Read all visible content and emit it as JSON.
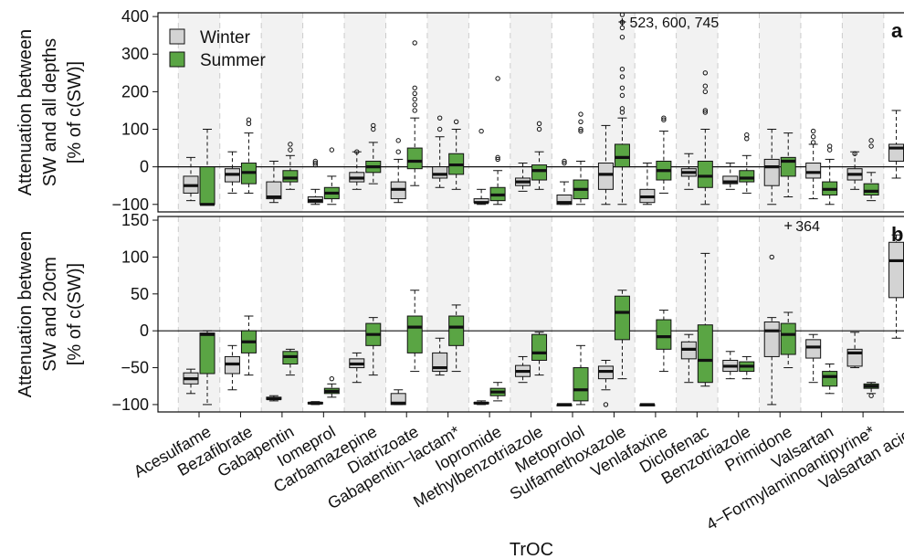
{
  "chart_data": {
    "type": "box",
    "xlabel": "TrOC",
    "categories": [
      "Acesulfame",
      "Bezafibrate",
      "Gabapentin",
      "Iomeprol",
      "Carbamazepine",
      "Diatrizoate",
      "Gabapentin−lactam*",
      "Iopromide",
      "Methylbenzotriazole",
      "Metoprolol",
      "Sulfamethoxazole",
      "Venlafaxine",
      "Diclofenac",
      "Benzotriazole",
      "Primidone",
      "Valsartan",
      "4−Formylaminoantipyrine*",
      "Valsartan acid*"
    ],
    "legend": {
      "placement": "top-left",
      "items": [
        {
          "name": "Winter",
          "color": "#d3d3d3"
        },
        {
          "name": "Summer",
          "color": "#5aa544"
        }
      ]
    },
    "panels": [
      {
        "label": "a",
        "ylabel_lines": [
          "Attenuation between",
          "SW and all depths",
          "[% of c(SW)]"
        ],
        "ylim": [
          -120,
          410
        ],
        "yticks": [
          -100,
          0,
          100,
          200,
          300,
          400
        ],
        "annotation": "523, 600, 745",
        "annotation_category": 10,
        "winter": [
          [
            -90,
            -70,
            -50,
            -25,
            25
          ],
          [
            -70,
            -40,
            -20,
            -5,
            40
          ],
          [
            -95,
            -85,
            -80,
            -40,
            15
          ],
          [
            -100,
            -95,
            -90,
            -80,
            -60
          ],
          [
            -60,
            -40,
            -30,
            -15,
            40
          ],
          [
            -95,
            -85,
            -60,
            -40,
            20
          ],
          [
            -55,
            -30,
            -20,
            0,
            80
          ],
          [
            -100,
            -95,
            -95,
            -85,
            -60
          ],
          [
            -65,
            -50,
            -40,
            -30,
            10
          ],
          [
            -100,
            -100,
            -95,
            -75,
            -40
          ],
          [
            -100,
            -60,
            -20,
            10,
            110
          ],
          [
            -100,
            -95,
            -80,
            -60,
            10
          ],
          [
            -60,
            -25,
            -15,
            -5,
            35
          ],
          [
            -60,
            -45,
            -40,
            -25,
            10
          ],
          [
            -100,
            -50,
            0,
            20,
            100
          ],
          [
            -85,
            -30,
            -15,
            10,
            60
          ],
          [
            -60,
            -35,
            -20,
            -5,
            40
          ],
          [
            -30,
            15,
            50,
            60,
            150
          ]
        ],
        "summer": [
          [
            -100,
            -100,
            -100,
            0,
            100
          ],
          [
            -70,
            -45,
            -15,
            10,
            90
          ],
          [
            -60,
            -40,
            -30,
            -10,
            30
          ],
          [
            -100,
            -85,
            -70,
            -55,
            -25
          ],
          [
            -45,
            -15,
            0,
            15,
            65
          ],
          [
            -50,
            -5,
            15,
            50,
            130
          ],
          [
            -60,
            -20,
            5,
            35,
            100
          ],
          [
            -100,
            -90,
            -75,
            -55,
            -10
          ],
          [
            -60,
            -35,
            -10,
            5,
            40
          ],
          [
            -100,
            -85,
            -60,
            -35,
            15
          ],
          [
            -100,
            0,
            25,
            60,
            130
          ],
          [
            -70,
            -35,
            -10,
            15,
            95
          ],
          [
            -100,
            -55,
            -25,
            15,
            100
          ],
          [
            -70,
            -40,
            -30,
            -10,
            30
          ],
          [
            -80,
            -25,
            15,
            25,
            90
          ],
          [
            -100,
            -75,
            -60,
            -40,
            20
          ],
          [
            -90,
            -75,
            -65,
            -45,
            -15
          ],
          [
            -60,
            0,
            20,
            35,
            80
          ]
        ],
        "outliers_winter": [
          [],
          [],
          [],
          [
            15,
            10,
            5
          ],
          [
            40
          ],
          [
            40,
            70
          ],
          [
            130,
            100
          ],
          [
            95
          ],
          [],
          [
            15,
            10
          ],
          [],
          [],
          [],
          [],
          [],
          [
            95,
            80,
            65
          ],
          [
            35
          ],
          []
        ],
        "outliers_summer": [
          [],
          [
            125,
            115
          ],
          [
            60,
            45
          ],
          [
            45
          ],
          [
            110,
            100
          ],
          [
            330,
            210,
            195,
            180,
            165,
            150
          ],
          [
            120
          ],
          [
            235,
            25,
            20
          ],
          [
            115,
            100
          ],
          [
            140,
            120,
            100,
            95
          ],
          [
            405,
            385,
            370,
            345,
            260,
            240,
            210,
            190,
            155,
            145
          ],
          [
            130,
            125
          ],
          [
            250,
            215,
            200,
            150,
            145
          ],
          [
            85,
            75
          ],
          [],
          [
            55,
            45
          ],
          [
            70,
            55
          ],
          [
            120,
            115,
            105,
            95,
            -65
          ]
        ]
      },
      {
        "label": "b",
        "ylabel_lines": [
          "Attenuation between",
          "SW and 20cm",
          "[% of c(SW)]"
        ],
        "ylim": [
          -110,
          155
        ],
        "yticks": [
          -100,
          -50,
          0,
          50,
          100,
          150
        ],
        "annotation": "364",
        "annotation_category": 14,
        "winter": [
          [
            -85,
            -72,
            -65,
            -57,
            -52
          ],
          [
            -80,
            -58,
            -45,
            -35,
            -20
          ],
          [
            -95,
            -93,
            -92,
            -90,
            -88
          ],
          [
            -100,
            -99,
            -98,
            -97,
            -96
          ],
          [
            -70,
            -50,
            -45,
            -38,
            -30
          ],
          [
            -100,
            -100,
            -98,
            -85,
            -80
          ],
          [
            -60,
            -55,
            -50,
            -30,
            -10
          ],
          [
            -100,
            -99,
            -98,
            -97,
            -95
          ],
          [
            -70,
            -62,
            -55,
            -47,
            -35
          ],
          [
            -100,
            -100,
            -100,
            -100,
            -100
          ],
          [
            -80,
            -65,
            -55,
            -48,
            -40
          ],
          [
            -100,
            -100,
            -100,
            -100,
            -100
          ],
          [
            -70,
            -38,
            -25,
            -15,
            -5
          ],
          [
            -65,
            -55,
            -48,
            -40,
            -28
          ],
          [
            -100,
            -35,
            0,
            12,
            18
          ],
          [
            -70,
            -37,
            -22,
            -12,
            -5
          ],
          [
            -50,
            -48,
            -30,
            -25,
            -2
          ],
          [
            -10,
            45,
            95,
            120,
            130
          ]
        ],
        "summer": [
          [
            -100,
            -58,
            -5,
            -3,
            0
          ],
          [
            -60,
            -30,
            -15,
            0,
            20
          ],
          [
            -60,
            -45,
            -35,
            -28,
            -25
          ],
          [
            -90,
            -85,
            -82,
            -78,
            -72
          ],
          [
            -60,
            -20,
            -5,
            10,
            18
          ],
          [
            -55,
            -30,
            5,
            20,
            55
          ],
          [
            -55,
            -20,
            5,
            20,
            35
          ],
          [
            -95,
            -88,
            -83,
            -78,
            -70
          ],
          [
            -60,
            -40,
            -30,
            -5,
            -2
          ],
          [
            -100,
            -95,
            -80,
            -50,
            -20
          ],
          [
            -65,
            -12,
            25,
            47,
            55
          ],
          [
            -55,
            -25,
            -8,
            15,
            28
          ],
          [
            -75,
            -70,
            -40,
            8,
            105
          ],
          [
            -65,
            -55,
            -48,
            -42,
            -35
          ],
          [
            -50,
            -32,
            -5,
            10,
            25
          ],
          [
            -85,
            -75,
            -62,
            -55,
            -45
          ],
          [
            -85,
            -78,
            -75,
            -72,
            -70
          ],
          [
            -5,
            -2,
            15,
            28,
            40
          ]
        ],
        "outliers_winter": [
          [],
          [],
          [],
          [],
          [],
          [],
          [],
          [],
          [],
          [],
          [
            -100
          ],
          [],
          [],
          [],
          [
            100
          ],
          [],
          [],
          []
        ],
        "outliers_summer": [
          [],
          [],
          [],
          [
            -65
          ],
          [],
          [],
          [],
          [],
          [],
          [],
          [],
          [],
          [],
          [],
          [],
          [],
          [
            -88
          ],
          [
            -48
          ]
        ]
      }
    ],
    "colors": {
      "winter": "#d3d3d3",
      "summer": "#5aa544",
      "band": "#f2f2f2"
    }
  }
}
